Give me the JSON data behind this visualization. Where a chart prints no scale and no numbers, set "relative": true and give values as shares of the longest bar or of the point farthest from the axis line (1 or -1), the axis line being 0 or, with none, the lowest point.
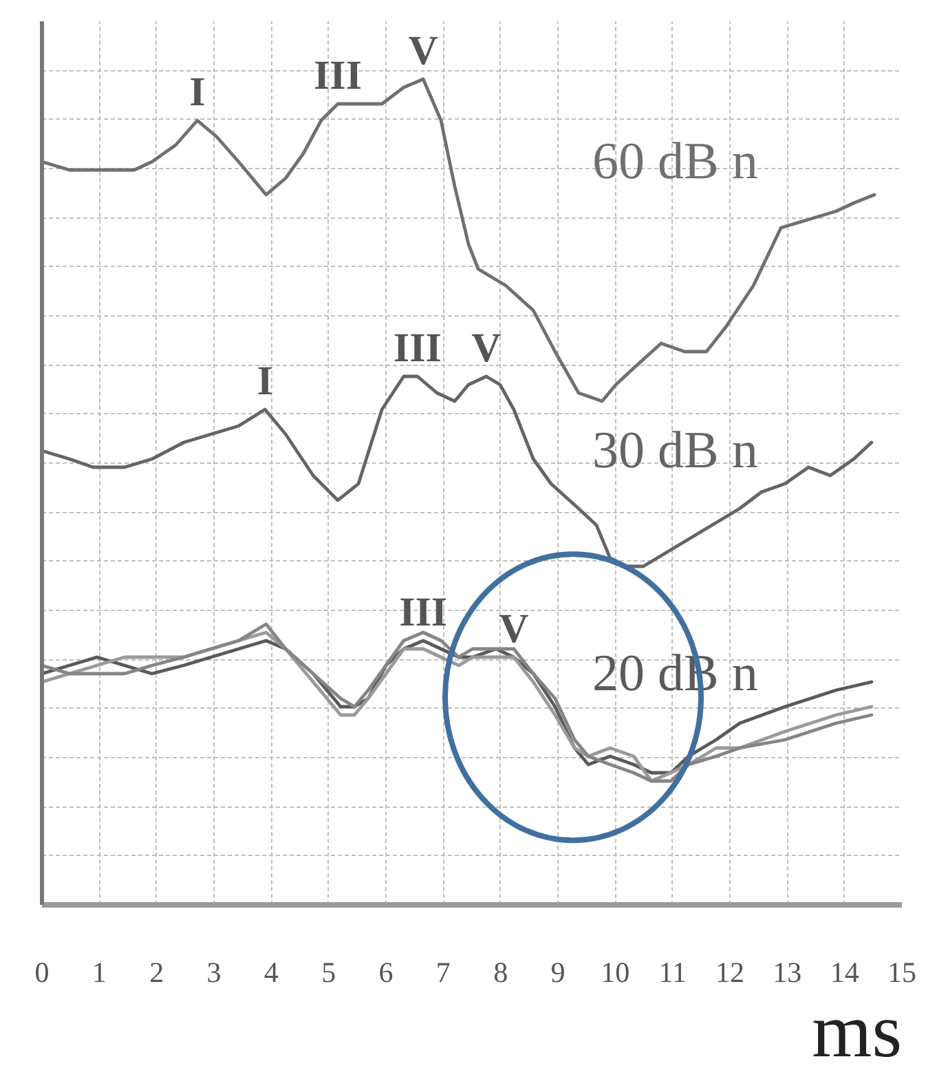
{
  "chart_data": {
    "type": "line",
    "relative": true,
    "xlabel": "ms",
    "xlim": [
      0,
      15
    ],
    "xticks": [
      0,
      1,
      2,
      3,
      4,
      5,
      6,
      7,
      8,
      9,
      10,
      11,
      12,
      13,
      14,
      15
    ],
    "grid": true,
    "series": [
      {
        "name": "60 dB n",
        "color": "#707070",
        "x": [
          0,
          0.48,
          0.96,
          1.61,
          1.92,
          2.33,
          2.71,
          3.05,
          3.43,
          3.91,
          4.25,
          4.56,
          4.87,
          5.16,
          5.52,
          5.93,
          6.31,
          6.65,
          6.96,
          7.2,
          7.44,
          7.61,
          8.09,
          8.57,
          8.95,
          9.36,
          9.77,
          10.01,
          10.32,
          10.8,
          11.21,
          11.59,
          11.93,
          12.41,
          12.89,
          13.37,
          13.85,
          14.16,
          14.52
        ],
        "values": [
          0.9,
          0.89,
          0.89,
          0.89,
          0.9,
          0.92,
          0.95,
          0.93,
          0.9,
          0.86,
          0.88,
          0.91,
          0.95,
          0.97,
          0.97,
          0.97,
          0.99,
          1.0,
          0.95,
          0.87,
          0.8,
          0.77,
          0.75,
          0.72,
          0.67,
          0.62,
          0.61,
          0.63,
          0.65,
          0.68,
          0.67,
          0.67,
          0.7,
          0.75,
          0.82,
          0.83,
          0.84,
          0.85,
          0.86
        ]
      },
      {
        "name": "30 dB n",
        "color": "#656565",
        "x": [
          0,
          0.48,
          0.89,
          1.44,
          1.92,
          2.47,
          2.95,
          3.43,
          3.89,
          4.25,
          4.73,
          5.16,
          5.52,
          5.93,
          6.31,
          6.55,
          6.89,
          7.2,
          7.44,
          7.75,
          7.99,
          8.23,
          8.57,
          8.88,
          9.36,
          9.67,
          9.91,
          10.2,
          10.49,
          10.97,
          11.45,
          12.17,
          12.55,
          12.96,
          13.37,
          13.75,
          14.16,
          14.47
        ],
        "values": [
          0.55,
          0.54,
          0.53,
          0.53,
          0.54,
          0.56,
          0.57,
          0.58,
          0.6,
          0.57,
          0.52,
          0.49,
          0.51,
          0.6,
          0.64,
          0.64,
          0.62,
          0.61,
          0.63,
          0.64,
          0.63,
          0.6,
          0.54,
          0.51,
          0.48,
          0.46,
          0.42,
          0.41,
          0.41,
          0.43,
          0.45,
          0.48,
          0.5,
          0.51,
          0.53,
          0.52,
          0.54,
          0.56
        ]
      },
      {
        "name": "20 dB n",
        "color": "#5a5a5a",
        "x": [
          0,
          0.48,
          0.96,
          1.44,
          1.92,
          2.47,
          2.95,
          3.43,
          3.91,
          4.25,
          4.73,
          5.21,
          5.45,
          5.69,
          6.0,
          6.31,
          6.65,
          6.96,
          7.27,
          7.51,
          7.92,
          8.23,
          8.57,
          8.95,
          9.29,
          9.53,
          9.91,
          10.32,
          10.63,
          10.97,
          11.28,
          11.76,
          12.17,
          12.96,
          13.85,
          14.47
        ],
        "values": [
          0.28,
          0.29,
          0.3,
          0.29,
          0.28,
          0.29,
          0.3,
          0.31,
          0.32,
          0.31,
          0.28,
          0.24,
          0.24,
          0.25,
          0.29,
          0.31,
          0.32,
          0.31,
          0.3,
          0.3,
          0.31,
          0.3,
          0.28,
          0.24,
          0.19,
          0.17,
          0.18,
          0.17,
          0.16,
          0.16,
          0.18,
          0.2,
          0.22,
          0.24,
          0.26,
          0.27
        ]
      },
      {
        "color": "#9a9a9a",
        "x": [
          0,
          0.48,
          0.96,
          1.44,
          1.92,
          2.47,
          2.95,
          3.43,
          3.91,
          4.25,
          4.73,
          5.21,
          5.45,
          5.69,
          6.0,
          6.31,
          6.65,
          6.96,
          7.27,
          7.51,
          7.92,
          8.23,
          8.57,
          8.95,
          9.29,
          9.53,
          9.91,
          10.32,
          10.63,
          10.97,
          11.28,
          11.76,
          12.17,
          12.96,
          13.85,
          14.47
        ],
        "values": [
          0.27,
          0.28,
          0.29,
          0.3,
          0.3,
          0.3,
          0.31,
          0.32,
          0.33,
          0.31,
          0.27,
          0.23,
          0.23,
          0.25,
          0.28,
          0.31,
          0.31,
          0.3,
          0.29,
          0.3,
          0.3,
          0.3,
          0.27,
          0.23,
          0.19,
          0.18,
          0.19,
          0.18,
          0.15,
          0.16,
          0.17,
          0.19,
          0.19,
          0.21,
          0.23,
          0.24
        ]
      },
      {
        "color": "#858585",
        "x": [
          0,
          0.48,
          0.96,
          1.44,
          1.92,
          2.47,
          2.95,
          3.43,
          3.91,
          4.25,
          4.73,
          5.21,
          5.45,
          5.69,
          6.0,
          6.31,
          6.65,
          6.96,
          7.27,
          7.51,
          7.92,
          8.23,
          8.57,
          8.95,
          9.29,
          9.53,
          9.91,
          10.32,
          10.63,
          10.97,
          11.28,
          11.76,
          12.17,
          12.96,
          13.85,
          14.47
        ],
        "values": [
          0.29,
          0.28,
          0.28,
          0.28,
          0.29,
          0.3,
          0.31,
          0.32,
          0.34,
          0.31,
          0.28,
          0.25,
          0.24,
          0.26,
          0.29,
          0.32,
          0.33,
          0.32,
          0.3,
          0.31,
          0.31,
          0.31,
          0.28,
          0.25,
          0.2,
          0.18,
          0.17,
          0.16,
          0.15,
          0.15,
          0.17,
          0.18,
          0.19,
          0.2,
          0.22,
          0.23
        ]
      }
    ],
    "annotations": [
      {
        "text": "I",
        "x": 2.71,
        "y": 0.95
      },
      {
        "text": "III",
        "x": 5.16,
        "y": 0.97
      },
      {
        "text": "V",
        "x": 6.65,
        "y": 1.0
      },
      {
        "text": "I",
        "x": 3.89,
        "y": 0.6
      },
      {
        "text": "III",
        "x": 6.55,
        "y": 0.64
      },
      {
        "text": "V",
        "x": 7.75,
        "y": 0.64
      },
      {
        "text": "III",
        "x": 6.65,
        "y": 0.32
      },
      {
        "text": "V",
        "x": 8.23,
        "y": 0.3
      }
    ]
  }
}
